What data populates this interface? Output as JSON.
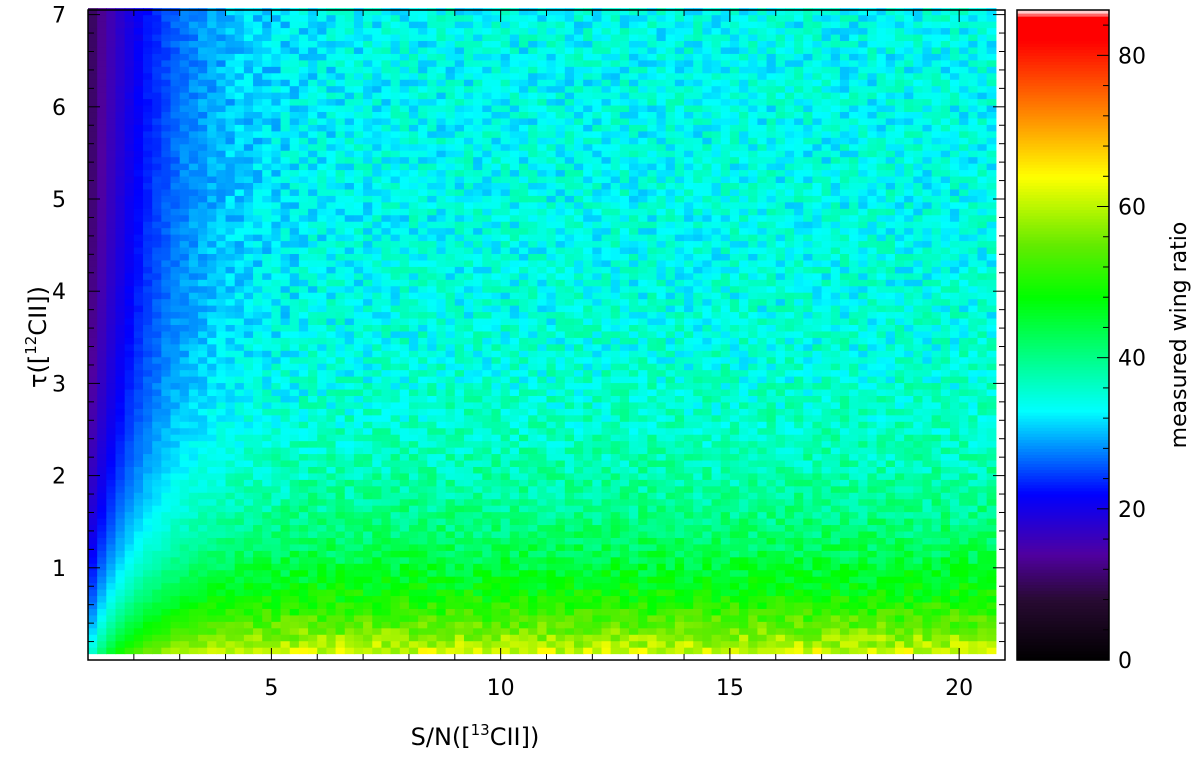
{
  "chart_data": {
    "type": "heatmap",
    "xlabel": {
      "prefix": "S/N([",
      "sup": "13",
      "suffix": "CII])"
    },
    "ylabel": {
      "prefix": "τ([",
      "sup": "12",
      "suffix": "CII])"
    },
    "colorbar_label": "measured wing ratio",
    "xlim": [
      1,
      21
    ],
    "ylim": [
      0,
      7.05
    ],
    "x_ticks": [
      5,
      10,
      15,
      20
    ],
    "y_ticks": [
      1,
      2,
      3,
      4,
      5,
      6,
      7
    ],
    "colorbar_range": [
      0,
      86
    ],
    "colorbar_ticks": [
      0,
      20,
      40,
      60,
      80
    ],
    "colormap": "rainbow (black → purple → blue → cyan → green → yellow → red → white)",
    "grid": {
      "x_start": 1.0,
      "x_end": 20.8,
      "x_step": 0.2,
      "y_start": 0.07,
      "y_end": 7.07,
      "y_step": 0.07
    },
    "value_trend": "ratio increases with S/N and decreases with τ; about 5 at S/N≈1, about 15–20 at low S/N for high τ, about 30–35 near τ≈4–7 at high S/N, about 45–50 for τ≈1–2.5, about 60–65 at τ≲0.3 and S/N≳5"
  }
}
